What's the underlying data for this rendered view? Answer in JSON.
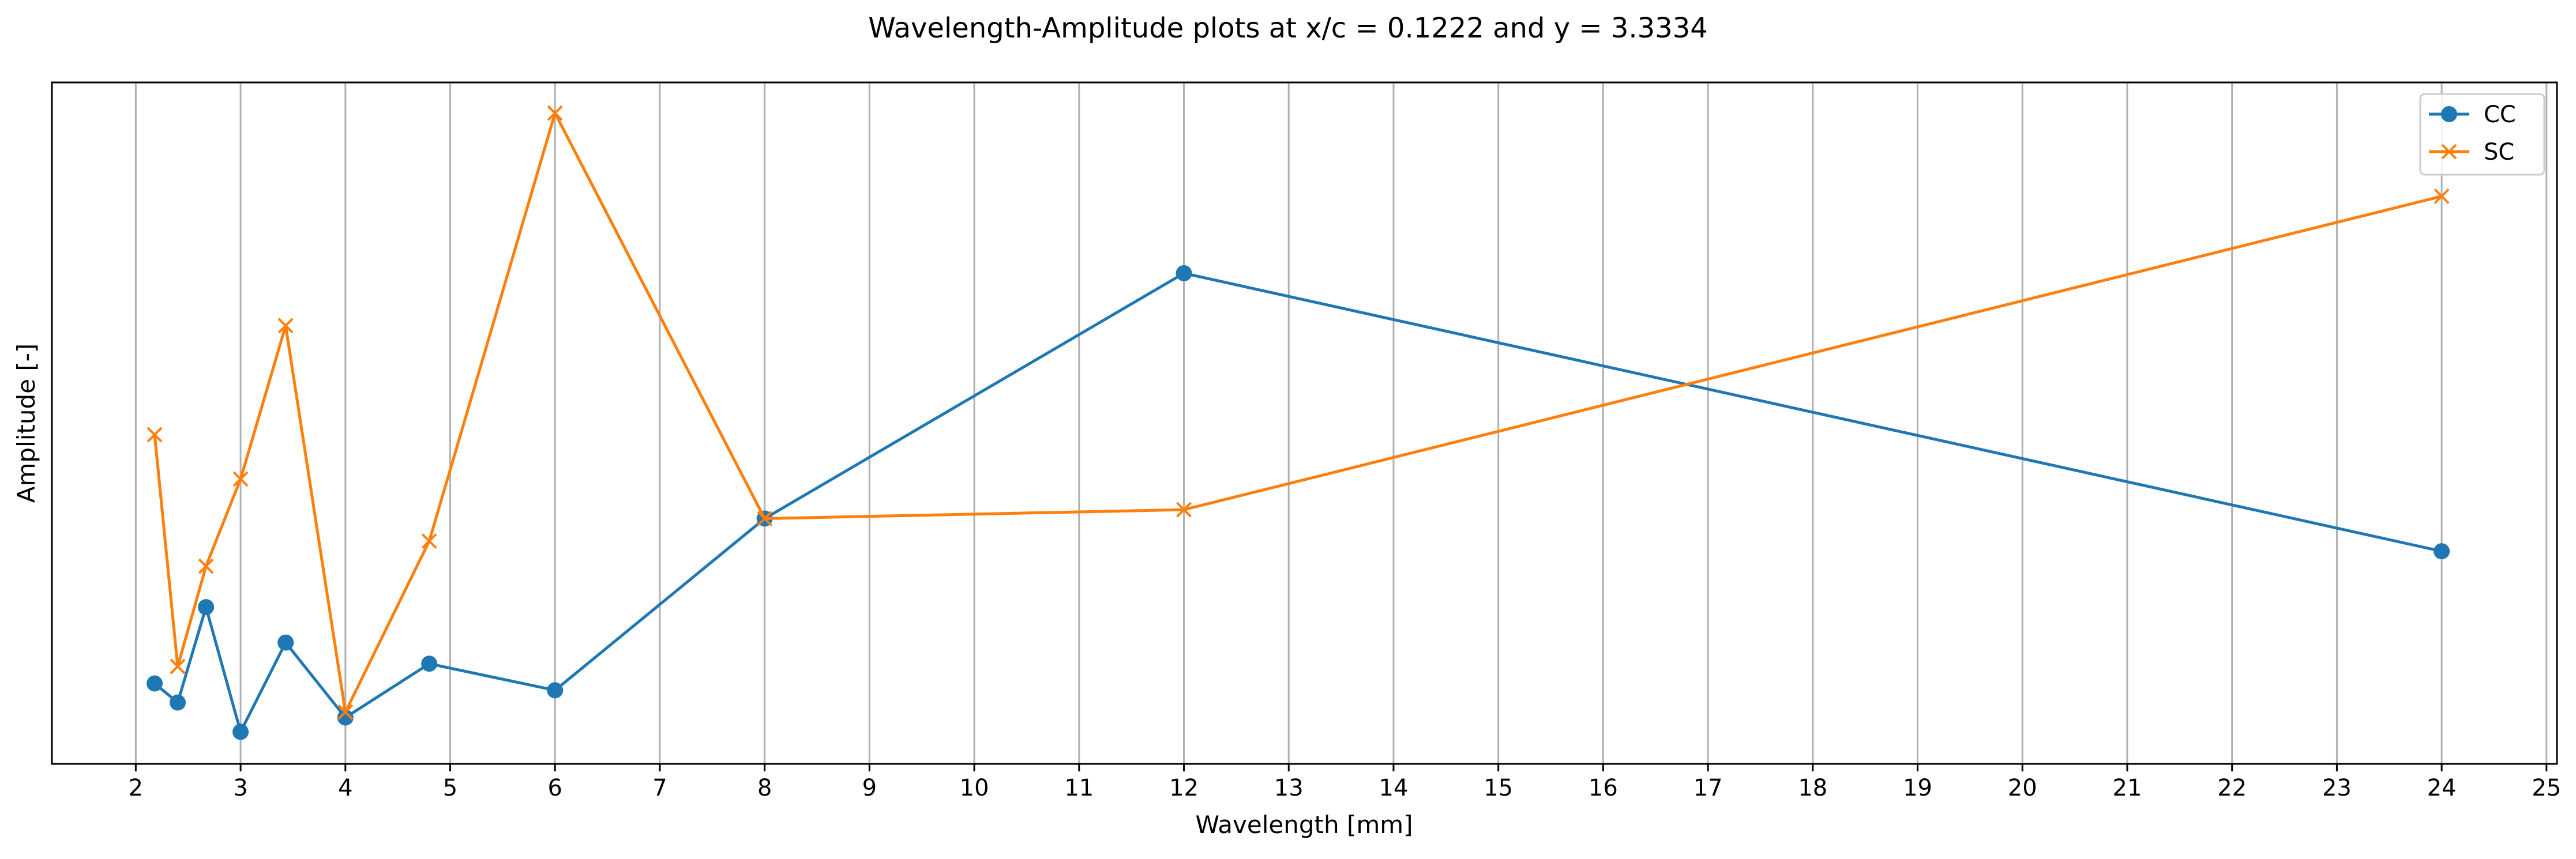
{
  "chart_data": {
    "type": "line",
    "title": "Wavelength-Amplitude plots at x/c = 0.1222 and y = 3.3334",
    "xlabel": "Wavelength [mm]",
    "ylabel": "Amplitude [-]",
    "xlim": [
      1.2,
      25.1
    ],
    "ylim": [
      0.0,
      1.0
    ],
    "y_tick_labels_shown": false,
    "xticks": [
      2,
      3,
      4,
      5,
      6,
      7,
      8,
      9,
      10,
      11,
      12,
      13,
      14,
      15,
      16,
      17,
      18,
      19,
      20,
      21,
      22,
      23,
      24,
      25
    ],
    "grid": "vertical",
    "legend_position": "top-right",
    "series": [
      {
        "name": "CC",
        "color": "#1f77b4",
        "marker": "circle",
        "points": [
          {
            "x": 2.18,
            "y": 0.118
          },
          {
            "x": 2.4,
            "y": 0.09
          },
          {
            "x": 2.67,
            "y": 0.23
          },
          {
            "x": 3.0,
            "y": 0.047
          },
          {
            "x": 3.43,
            "y": 0.178
          },
          {
            "x": 4.0,
            "y": 0.068
          },
          {
            "x": 4.8,
            "y": 0.147
          },
          {
            "x": 6.0,
            "y": 0.108
          },
          {
            "x": 8.0,
            "y": 0.36
          },
          {
            "x": 12.0,
            "y": 0.72
          },
          {
            "x": 24.0,
            "y": 0.312
          }
        ]
      },
      {
        "name": "SC",
        "color": "#ff7f0e",
        "marker": "x",
        "points": [
          {
            "x": 2.18,
            "y": 0.483
          },
          {
            "x": 2.4,
            "y": 0.143
          },
          {
            "x": 2.67,
            "y": 0.29
          },
          {
            "x": 3.0,
            "y": 0.418
          },
          {
            "x": 3.43,
            "y": 0.643
          },
          {
            "x": 4.0,
            "y": 0.076
          },
          {
            "x": 4.8,
            "y": 0.327
          },
          {
            "x": 6.0,
            "y": 0.955
          },
          {
            "x": 8.0,
            "y": 0.36
          },
          {
            "x": 12.0,
            "y": 0.373
          },
          {
            "x": 24.0,
            "y": 0.833
          }
        ]
      }
    ]
  }
}
